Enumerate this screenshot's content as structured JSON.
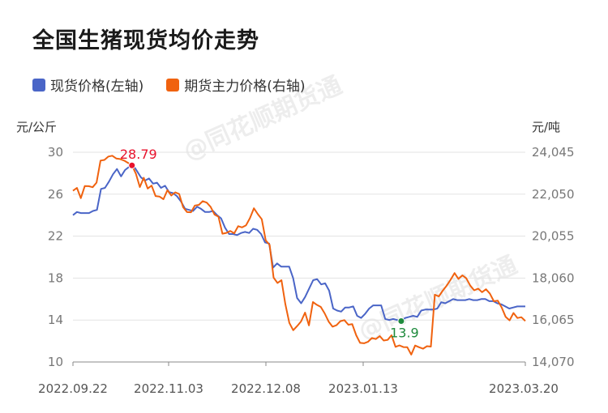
{
  "title": "全国生猪现货均价走势",
  "watermark": "@同花顺期货通",
  "legend": [
    {
      "label": "现货价格(左轴)",
      "color": "#4a65c7"
    },
    {
      "label": "期货主力价格(右轴)",
      "color": "#f0620f"
    }
  ],
  "chart_data": {
    "type": "line",
    "y_left": {
      "unit": "元/公斤",
      "ticks": [
        "30",
        "26",
        "22",
        "18",
        "14",
        "10"
      ],
      "range": [
        10,
        30
      ]
    },
    "y_right": {
      "unit": "元/吨",
      "ticks": [
        "24,045",
        "22,050",
        "20,055",
        "18,060",
        "16,065",
        "14,070"
      ],
      "range": [
        14070,
        24045
      ]
    },
    "x_labels": [
      "2022.09.22",
      "2022.11.03",
      "2022.12.08",
      "2023.01.13",
      "2023.03.20"
    ],
    "annotations": [
      {
        "series": "期货主力价格",
        "index": 15,
        "label": "28.79",
        "color": "#e8122c"
      },
      {
        "series": "现货价格",
        "index": 82,
        "label": "13.9",
        "color": "#1e8a3c"
      }
    ],
    "series": [
      {
        "name": "现货价格",
        "axis": "left",
        "color": "#4a65c7",
        "values": [
          24.0,
          24.3,
          24.2,
          24.2,
          24.2,
          24.4,
          24.5,
          26.5,
          26.6,
          27.2,
          27.9,
          28.4,
          27.7,
          28.3,
          28.6,
          28.79,
          28.2,
          27.6,
          27.3,
          27.5,
          27.0,
          27.1,
          26.6,
          26.8,
          26.2,
          26.1,
          25.8,
          25.3,
          24.6,
          24.5,
          24.4,
          24.8,
          24.6,
          24.3,
          24.3,
          24.4,
          24.0,
          23.7,
          22.8,
          22.2,
          22.2,
          22.1,
          22.3,
          22.4,
          22.3,
          22.7,
          22.6,
          22.2,
          21.4,
          21.3,
          19.0,
          19.4,
          19.1,
          19.1,
          19.1,
          18.0,
          16.1,
          15.6,
          16.2,
          17.0,
          17.8,
          17.9,
          17.4,
          17.5,
          16.8,
          15.1,
          14.9,
          14.8,
          15.2,
          15.2,
          15.3,
          14.4,
          14.2,
          14.6,
          15.1,
          15.4,
          15.4,
          15.4,
          14.1,
          14.0,
          14.1,
          14.0,
          13.9,
          14.2,
          14.3,
          14.4,
          14.3,
          14.9,
          15.0,
          15.0,
          15.0,
          15.1,
          15.7,
          15.6,
          15.8,
          16.0,
          15.9,
          15.9,
          15.9,
          16.0,
          15.9,
          15.9,
          16.0,
          16.0,
          15.8,
          15.8,
          15.6,
          15.5,
          15.3,
          15.1,
          15.2,
          15.3,
          15.3,
          15.3
        ]
      },
      {
        "name": "期货主力价格",
        "axis": "right",
        "color": "#f0620f",
        "values": [
          22210,
          22350,
          21860,
          22440,
          22430,
          22380,
          22600,
          23650,
          23680,
          23840,
          23880,
          23750,
          23720,
          23650,
          23540,
          23420,
          23030,
          22390,
          22830,
          22320,
          22460,
          21960,
          21940,
          21810,
          22240,
          21990,
          22140,
          22060,
          21430,
          21200,
          21190,
          21510,
          21540,
          21720,
          21650,
          21450,
          21080,
          20980,
          20170,
          20210,
          20300,
          20190,
          20530,
          20470,
          20570,
          20910,
          21380,
          21100,
          20860,
          19850,
          19640,
          18080,
          17830,
          17960,
          16820,
          15930,
          15580,
          15780,
          16000,
          16420,
          15810,
          16920,
          16790,
          16690,
          16380,
          15990,
          15750,
          15820,
          16010,
          16060,
          15840,
          15870,
          15340,
          14980,
          14960,
          15030,
          15210,
          15160,
          15300,
          15090,
          15120,
          15340,
          14790,
          14860,
          14780,
          14770,
          14420,
          14850,
          14770,
          14700,
          14820,
          14800,
          17270,
          17190,
          17460,
          17700,
          17980,
          18300,
          18020,
          18190,
          18050,
          17700,
          17480,
          17560,
          17390,
          17530,
          17320,
          16960,
          16990,
          16660,
          16220,
          16050,
          16400,
          16160,
          16200,
          16020
        ]
      }
    ]
  }
}
